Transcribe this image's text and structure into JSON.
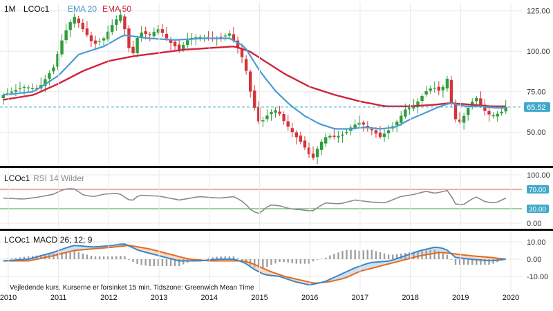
{
  "colors": {
    "up": "#2e9e3a",
    "down": "#d4343a",
    "ema20": "#4a9bd4",
    "ema50": "#d0233a",
    "rsi": "#8a8a8a",
    "rsi_upper": "#d45a4a",
    "rsi_lower": "#3aa04a",
    "macd": "#3a86c8",
    "signal": "#e36b1e",
    "hist": "#9e9e9e",
    "last_price_bg": "#3fa9c9",
    "rsi_level_bg": "#3fa9c9",
    "separator": "#111111",
    "grid": "#e8e8e8"
  },
  "chart_data": [
    {
      "id": "price",
      "type": "candlestick",
      "interval_label": "1M",
      "symbol_label": "LCOc1",
      "legend": [
        {
          "name": "EMA 20",
          "color": "#4a9bd4"
        },
        {
          "name": "EMA 50",
          "color": "#d0233a"
        }
      ],
      "y_ticks": [
        "50.00",
        "75.00",
        "100.00",
        "125.00"
      ],
      "ylim": [
        30,
        130
      ],
      "last_price": 65.52,
      "last_price_label": "65.52",
      "x_ticks": [
        "2010",
        "2011",
        "2012",
        "2013",
        "2014",
        "2015",
        "2016",
        "2017",
        "2018",
        "2019",
        "2020"
      ],
      "anchors": {
        "close": [
          [
            2009.9,
            73
          ],
          [
            2010.3,
            78
          ],
          [
            2010.6,
            77
          ],
          [
            2010.9,
            90
          ],
          [
            2011.1,
            110
          ],
          [
            2011.3,
            122
          ],
          [
            2011.5,
            113
          ],
          [
            2011.7,
            104
          ],
          [
            2011.9,
            108
          ],
          [
            2012.1,
            118
          ],
          [
            2012.25,
            123
          ],
          [
            2012.45,
            95
          ],
          [
            2012.6,
            112
          ],
          [
            2012.8,
            110
          ],
          [
            2013.0,
            114
          ],
          [
            2013.2,
            106
          ],
          [
            2013.4,
            101
          ],
          [
            2013.6,
            108
          ],
          [
            2013.8,
            109
          ],
          [
            2014.0,
            108
          ],
          [
            2014.2,
            108
          ],
          [
            2014.4,
            111
          ],
          [
            2014.55,
            103
          ],
          [
            2014.7,
            93
          ],
          [
            2014.85,
            70
          ],
          [
            2015.0,
            55
          ],
          [
            2015.2,
            62
          ],
          [
            2015.35,
            64
          ],
          [
            2015.5,
            56
          ],
          [
            2015.7,
            48
          ],
          [
            2015.85,
            43
          ],
          [
            2016.05,
            33
          ],
          [
            2016.2,
            43
          ],
          [
            2016.35,
            48
          ],
          [
            2016.5,
            47
          ],
          [
            2016.7,
            49
          ],
          [
            2016.85,
            54
          ],
          [
            2017.0,
            56
          ],
          [
            2017.2,
            52
          ],
          [
            2017.4,
            47
          ],
          [
            2017.6,
            52
          ],
          [
            2017.75,
            57
          ],
          [
            2017.9,
            64
          ],
          [
            2018.1,
            67
          ],
          [
            2018.3,
            75
          ],
          [
            2018.45,
            78
          ],
          [
            2018.6,
            75
          ],
          [
            2018.75,
            84
          ],
          [
            2018.85,
            59
          ],
          [
            2019.0,
            56
          ],
          [
            2019.15,
            65
          ],
          [
            2019.3,
            72
          ],
          [
            2019.45,
            64
          ],
          [
            2019.6,
            60
          ],
          [
            2019.8,
            62
          ],
          [
            2019.9,
            65.5
          ]
        ],
        "ema20": [
          [
            2009.9,
            73
          ],
          [
            2010.5,
            75
          ],
          [
            2011.0,
            85
          ],
          [
            2011.4,
            98
          ],
          [
            2011.9,
            103
          ],
          [
            2012.3,
            110
          ],
          [
            2012.8,
            108
          ],
          [
            2013.3,
            107
          ],
          [
            2013.9,
            108
          ],
          [
            2014.4,
            108
          ],
          [
            2014.7,
            103
          ],
          [
            2015.0,
            88
          ],
          [
            2015.3,
            76
          ],
          [
            2015.6,
            67
          ],
          [
            2015.9,
            60
          ],
          [
            2016.2,
            55
          ],
          [
            2016.5,
            52
          ],
          [
            2016.8,
            52
          ],
          [
            2017.1,
            53
          ],
          [
            2017.4,
            52
          ],
          [
            2017.7,
            53
          ],
          [
            2018.0,
            58
          ],
          [
            2018.3,
            62
          ],
          [
            2018.6,
            66
          ],
          [
            2018.8,
            68
          ],
          [
            2019.1,
            66
          ],
          [
            2019.4,
            66
          ],
          [
            2019.7,
            65
          ],
          [
            2019.9,
            65
          ]
        ],
        "ema50": [
          [
            2009.9,
            70
          ],
          [
            2010.5,
            73
          ],
          [
            2011.0,
            80
          ],
          [
            2011.5,
            88
          ],
          [
            2012.0,
            94
          ],
          [
            2012.5,
            97
          ],
          [
            2013.0,
            99
          ],
          [
            2013.5,
            101
          ],
          [
            2014.0,
            102
          ],
          [
            2014.5,
            103
          ],
          [
            2014.8,
            100
          ],
          [
            2015.1,
            94
          ],
          [
            2015.5,
            86
          ],
          [
            2016.0,
            78
          ],
          [
            2016.5,
            73
          ],
          [
            2017.0,
            69
          ],
          [
            2017.5,
            66
          ],
          [
            2018.0,
            66
          ],
          [
            2018.5,
            67
          ],
          [
            2018.8,
            68
          ],
          [
            2019.2,
            67
          ],
          [
            2019.6,
            66
          ],
          [
            2019.9,
            66
          ]
        ]
      }
    },
    {
      "id": "rsi",
      "type": "line",
      "symbol_label": "LCOc1",
      "indicator_label": "RSI 14 Wilder",
      "y_ticks": [
        "0.00",
        "30.00",
        "70.00",
        "100.00"
      ],
      "ylim": [
        0,
        100
      ],
      "levels": [
        {
          "value": 70,
          "label": "70.00"
        },
        {
          "value": 30,
          "label": "30.00"
        }
      ],
      "anchors": [
        [
          2009.9,
          52
        ],
        [
          2010.3,
          50
        ],
        [
          2010.6,
          54
        ],
        [
          2010.9,
          60
        ],
        [
          2011.1,
          70
        ],
        [
          2011.3,
          72
        ],
        [
          2011.5,
          58
        ],
        [
          2011.7,
          55
        ],
        [
          2011.9,
          60
        ],
        [
          2012.2,
          62
        ],
        [
          2012.45,
          45
        ],
        [
          2012.6,
          58
        ],
        [
          2013.0,
          56
        ],
        [
          2013.4,
          48
        ],
        [
          2013.8,
          55
        ],
        [
          2014.2,
          52
        ],
        [
          2014.5,
          55
        ],
        [
          2014.7,
          42
        ],
        [
          2014.85,
          25
        ],
        [
          2015.0,
          20
        ],
        [
          2015.2,
          38
        ],
        [
          2015.4,
          36
        ],
        [
          2015.6,
          30
        ],
        [
          2015.8,
          28
        ],
        [
          2016.05,
          25
        ],
        [
          2016.3,
          42
        ],
        [
          2016.6,
          40
        ],
        [
          2016.9,
          48
        ],
        [
          2017.2,
          44
        ],
        [
          2017.5,
          42
        ],
        [
          2017.8,
          55
        ],
        [
          2018.1,
          60
        ],
        [
          2018.3,
          66
        ],
        [
          2018.5,
          62
        ],
        [
          2018.75,
          68
        ],
        [
          2018.9,
          40
        ],
        [
          2019.05,
          38
        ],
        [
          2019.3,
          55
        ],
        [
          2019.5,
          44
        ],
        [
          2019.7,
          42
        ],
        [
          2019.9,
          52
        ]
      ]
    },
    {
      "id": "macd",
      "type": "line",
      "symbol_label": "LCOc1",
      "indicator_label": "MACD 26; 12; 9",
      "y_ticks": [
        "-10.00",
        "0.00",
        "10.00"
      ],
      "ylim": [
        -18,
        14
      ],
      "series": [
        {
          "key": "macd",
          "anchors": [
            [
              2009.9,
              -1
            ],
            [
              2010.4,
              0
            ],
            [
              2010.9,
              4
            ],
            [
              2011.3,
              8
            ],
            [
              2011.7,
              7
            ],
            [
              2012.1,
              8
            ],
            [
              2012.3,
              9
            ],
            [
              2012.6,
              5
            ],
            [
              2013.0,
              2
            ],
            [
              2013.4,
              -1
            ],
            [
              2013.8,
              -1
            ],
            [
              2014.2,
              0
            ],
            [
              2014.5,
              0
            ],
            [
              2014.7,
              -2
            ],
            [
              2014.9,
              -6
            ],
            [
              2015.1,
              -9
            ],
            [
              2015.4,
              -10
            ],
            [
              2015.7,
              -13
            ],
            [
              2016.0,
              -15
            ],
            [
              2016.3,
              -13
            ],
            [
              2016.6,
              -9
            ],
            [
              2016.9,
              -5
            ],
            [
              2017.2,
              -2
            ],
            [
              2017.6,
              -1
            ],
            [
              2017.9,
              2
            ],
            [
              2018.2,
              5
            ],
            [
              2018.5,
              7
            ],
            [
              2018.7,
              6
            ],
            [
              2018.9,
              1
            ],
            [
              2019.2,
              0
            ],
            [
              2019.6,
              -1
            ],
            [
              2019.9,
              0
            ]
          ]
        },
        {
          "key": "signal",
          "anchors": [
            [
              2009.9,
              -1
            ],
            [
              2010.4,
              -1
            ],
            [
              2010.9,
              2
            ],
            [
              2011.3,
              5
            ],
            [
              2011.7,
              6
            ],
            [
              2012.1,
              7
            ],
            [
              2012.4,
              8
            ],
            [
              2012.8,
              6
            ],
            [
              2013.2,
              3
            ],
            [
              2013.6,
              0
            ],
            [
              2014.0,
              -1
            ],
            [
              2014.4,
              -1
            ],
            [
              2014.7,
              -1
            ],
            [
              2014.9,
              -3
            ],
            [
              2015.2,
              -7
            ],
            [
              2015.5,
              -10
            ],
            [
              2015.8,
              -12
            ],
            [
              2016.1,
              -14
            ],
            [
              2016.4,
              -13
            ],
            [
              2016.7,
              -11
            ],
            [
              2017.0,
              -7
            ],
            [
              2017.4,
              -4
            ],
            [
              2017.8,
              -1
            ],
            [
              2018.2,
              2
            ],
            [
              2018.6,
              4
            ],
            [
              2018.9,
              3
            ],
            [
              2019.2,
              2
            ],
            [
              2019.6,
              1
            ],
            [
              2019.9,
              0
            ]
          ]
        }
      ]
    }
  ],
  "footer_note": "Vejledende kurs. Kurserne er forsinket 15 min.   Tidszone: Greenwich Mean Time"
}
